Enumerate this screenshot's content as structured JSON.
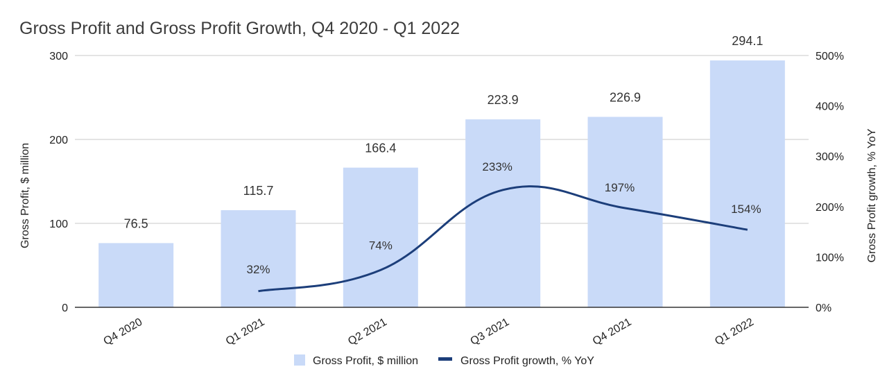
{
  "chart_data": {
    "type": "bar",
    "title": "Gross Profit and Gross Profit Growth, Q4 2020 - Q1 2022",
    "categories": [
      "Q4 2020",
      "Q1 2021",
      "Q2 2021",
      "Q3 2021",
      "Q4 2021",
      "Q1 2022"
    ],
    "series": [
      {
        "name": "Gross Profit, $ million",
        "type": "bar",
        "axis": "left",
        "values": [
          76.5,
          115.7,
          166.4,
          223.9,
          226.9,
          294.1
        ],
        "labels": [
          "76.5",
          "115.7",
          "166.4",
          "223.9",
          "226.9",
          "294.1"
        ],
        "color": "#c9daf8"
      },
      {
        "name": "Gross Profit growth, % YoY",
        "type": "line",
        "axis": "right",
        "values": [
          null,
          32,
          74,
          233,
          197,
          154
        ],
        "labels": [
          "",
          "32%",
          "74%",
          "233%",
          "197%",
          "154%"
        ],
        "color": "#1c3e7a"
      }
    ],
    "ylabel": "Gross Profit, $ million",
    "y2label": "Gross Profit growth, % YoY",
    "ylim": [
      0,
      300
    ],
    "y2lim": [
      0,
      500
    ],
    "yticks": [
      "0",
      "100",
      "200",
      "300"
    ],
    "y2ticks": [
      "0%",
      "100%",
      "200%",
      "300%",
      "400%",
      "500%"
    ],
    "grid": true,
    "legend": "bottom"
  }
}
